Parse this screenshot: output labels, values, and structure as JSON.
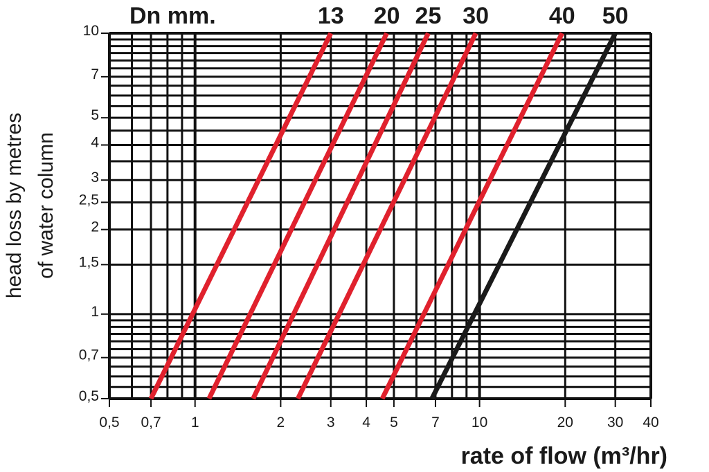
{
  "chart_data": {
    "type": "line",
    "title": "",
    "header_label": "Dn mm.",
    "xlabel": "rate of flow (m³/hr)",
    "ylabel_lines": [
      "head loss by metres",
      "of water column"
    ],
    "x_scale": "log",
    "y_scale": "log",
    "xlim": [
      0.5,
      40
    ],
    "ylim": [
      0.5,
      10
    ],
    "grid": true,
    "x_ticks": [
      {
        "value": 0.5,
        "label": "0,5"
      },
      {
        "value": 0.7,
        "label": "0,7"
      },
      {
        "value": 1,
        "label": "1"
      },
      {
        "value": 2,
        "label": "2"
      },
      {
        "value": 3,
        "label": "3"
      },
      {
        "value": 4,
        "label": "4"
      },
      {
        "value": 5,
        "label": "5"
      },
      {
        "value": 7,
        "label": "7"
      },
      {
        "value": 10,
        "label": "10"
      },
      {
        "value": 20,
        "label": "20"
      },
      {
        "value": 30,
        "label": "30"
      },
      {
        "value": 40,
        "label": "40"
      }
    ],
    "y_ticks": [
      {
        "value": 0.5,
        "label": "0,5"
      },
      {
        "value": 0.7,
        "label": "0,7"
      },
      {
        "value": 1,
        "label": "1"
      },
      {
        "value": 1.5,
        "label": "1,5"
      },
      {
        "value": 2,
        "label": "2"
      },
      {
        "value": 2.5,
        "label": "2,5"
      },
      {
        "value": 3,
        "label": "3"
      },
      {
        "value": 4,
        "label": "4"
      },
      {
        "value": 5,
        "label": "5"
      },
      {
        "value": 7,
        "label": "7"
      },
      {
        "value": 10,
        "label": "10"
      }
    ],
    "series": [
      {
        "name": "13",
        "color": "#e0212d",
        "x": [
          0.7,
          3.0
        ],
        "y": [
          0.5,
          10
        ]
      },
      {
        "name": "20",
        "color": "#e0212d",
        "x": [
          1.12,
          4.72
        ],
        "y": [
          0.5,
          10
        ]
      },
      {
        "name": "25",
        "color": "#e0212d",
        "x": [
          1.6,
          6.6
        ],
        "y": [
          0.5,
          10
        ]
      },
      {
        "name": "30",
        "color": "#e0212d",
        "x": [
          2.3,
          9.7
        ],
        "y": [
          0.5,
          10
        ]
      },
      {
        "name": "40",
        "color": "#e0212d",
        "x": [
          4.55,
          19.5
        ],
        "y": [
          0.5,
          10
        ]
      },
      {
        "name": "50",
        "color": "#1a1a1a",
        "x": [
          6.8,
          30
        ],
        "y": [
          0.5,
          10
        ]
      }
    ]
  }
}
